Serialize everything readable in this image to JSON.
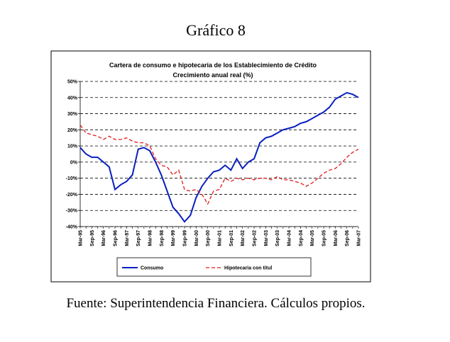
{
  "document": {
    "heading": "Gráfico 8",
    "source": "Fuente: Superintendencia Financiera. Cálculos propios."
  },
  "chart_data": {
    "type": "line",
    "title": "Cartera de consumo e hipotecaria de los Establecimiento de Crédito",
    "subtitle": "Crecimiento anual real (%)",
    "categories": [
      "Mar-95",
      null,
      "Sep-95",
      null,
      "Mar-96",
      null,
      "Sep-96",
      null,
      "Mar-97",
      null,
      "Sep-97",
      null,
      "Mar-98",
      null,
      "Sep-98",
      null,
      "Mar-99",
      null,
      "Sep-99",
      null,
      "Mar-00",
      null,
      "Sep-00",
      null,
      "Mar-01",
      null,
      "Sep-01",
      null,
      "Mar-02",
      null,
      "Sep-02",
      null,
      "Mar-03",
      null,
      "Sep-03",
      null,
      "Mar-04",
      null,
      "Sep-04",
      null,
      "Mar-05",
      null,
      "Sep-05",
      null,
      "Mar-06",
      null,
      "Sep-06",
      null,
      "Mar-07"
    ],
    "series": [
      {
        "name": "Consumo",
        "color": "#0a1fbf",
        "dash": false,
        "values": [
          9,
          5,
          3,
          3,
          0,
          -3,
          -17,
          -14,
          -12,
          -8,
          8,
          9,
          7,
          0,
          -8,
          -18,
          -28,
          -32,
          -37,
          -33,
          -22,
          -15,
          -10,
          -6,
          -5,
          -2,
          -5,
          2,
          -4,
          0,
          2,
          12,
          15,
          16,
          18,
          20,
          21,
          22,
          24,
          25,
          27,
          29,
          31,
          34,
          39,
          41,
          43,
          42,
          40
        ]
      },
      {
        "name": "Hipotecaria con titul",
        "color": "#e31a1a",
        "dash": true,
        "values": [
          23,
          18,
          17,
          16,
          14,
          16,
          14,
          14,
          15,
          13,
          12,
          12,
          10,
          2,
          -2,
          -3,
          -8,
          -5,
          -17,
          -18,
          -17,
          -20,
          -26,
          -18,
          -17,
          -10,
          -12,
          -10,
          -11,
          -10,
          -11,
          -10,
          -10,
          -11,
          -9,
          -11,
          -11,
          -12,
          -13,
          -15,
          -13,
          -10,
          -7,
          -5,
          -4,
          -1,
          3,
          6,
          8
        ]
      }
    ],
    "ylim": [
      -40,
      50
    ],
    "yticks": [
      {
        "value": -40,
        "label": "-40%"
      },
      {
        "value": -30,
        "label": "-30%"
      },
      {
        "value": -20,
        "label": "-20%"
      },
      {
        "value": -10,
        "label": "-10%"
      },
      {
        "value": 0,
        "label": "0%"
      },
      {
        "value": 10,
        "label": "10%"
      },
      {
        "value": 20,
        "label": "20%"
      },
      {
        "value": 30,
        "label": "30%"
      },
      {
        "value": 40,
        "label": "40%"
      },
      {
        "value": 50,
        "label": "50%"
      }
    ],
    "grid": true
  }
}
